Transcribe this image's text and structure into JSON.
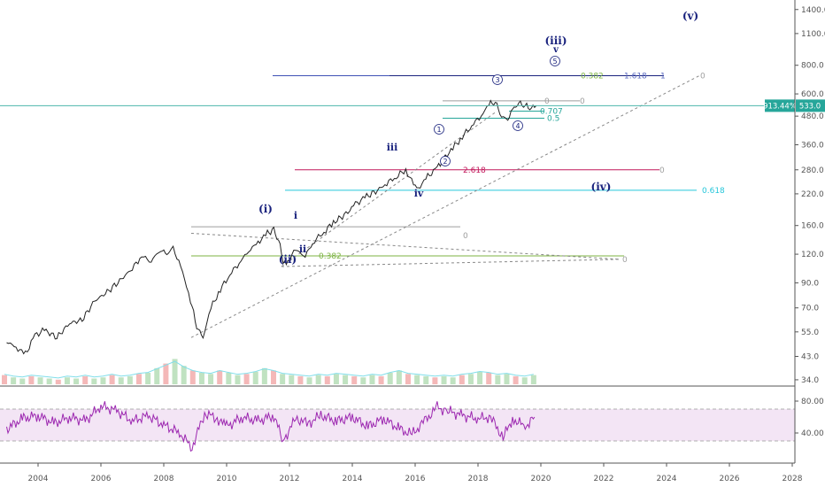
{
  "chart_data": [
    {
      "type": "line",
      "title": "",
      "y_scale": "log",
      "ylim": [
        30,
        1500
      ],
      "xlim": [
        2003.0,
        2027.6
      ],
      "y_ticks": [
        "1400.0",
        "1100.0",
        "800.0",
        "600.0",
        "480.0",
        "360.0",
        "280.0",
        "220.0",
        "160.0",
        "120.0",
        "90.0",
        "70.0",
        "55.0",
        "43.0",
        "34.0"
      ],
      "y_tick_values": [
        1400,
        1100,
        800,
        600,
        480,
        360,
        280,
        220,
        160,
        120,
        90,
        70,
        55,
        43,
        34
      ],
      "x_ticks": [
        "2004",
        "2006",
        "2008",
        "2010",
        "2012",
        "2014",
        "2016",
        "2018",
        "2020",
        "2022",
        "2024",
        "2026",
        "2028"
      ],
      "x_tick_values": [
        2004,
        2006,
        2008,
        2010,
        2012,
        2014,
        2016,
        2018,
        2020,
        2022,
        2024,
        2026,
        2028
      ],
      "series": [
        {
          "color": "#222222",
          "x": [
            2003.0,
            2003.3,
            2003.6,
            2003.9,
            2004.2,
            2004.6,
            2005.0,
            2005.4,
            2005.8,
            2006.2,
            2006.6,
            2007.0,
            2007.3,
            2007.6,
            2007.9,
            2008.1,
            2008.3,
            2008.6,
            2008.85,
            2009.05,
            2009.25,
            2009.5,
            2009.8,
            2010.1,
            2010.4,
            2010.7,
            2011.0,
            2011.3,
            2011.5,
            2011.7,
            2011.8,
            2011.95,
            2012.2,
            2012.5,
            2012.8,
            2013.1,
            2013.4,
            2013.8,
            2014.1,
            2014.4,
            2014.8,
            2015.1,
            2015.4,
            2015.7,
            2015.95,
            2016.1,
            2016.4,
            2016.7,
            2016.9,
            2017.2,
            2017.5,
            2017.8,
            2018.1,
            2018.35,
            2018.55,
            2018.75,
            2018.95,
            2019.1,
            2019.3,
            2019.5,
            2019.7,
            2019.85
          ],
          "values": [
            50,
            47,
            44,
            53,
            56,
            52,
            60,
            62,
            75,
            82,
            92,
            104,
            118,
            112,
            126,
            120,
            128,
            100,
            76,
            58,
            52,
            70,
            84,
            98,
            110,
            124,
            135,
            148,
            153,
            132,
            108,
            112,
            125,
            118,
            138,
            150,
            165,
            180,
            198,
            212,
            228,
            245,
            262,
            280,
            240,
            232,
            262,
            285,
            312,
            348,
            390,
            438,
            482,
            540,
            555,
            478,
            465,
            512,
            548,
            533,
            520,
            533
          ]
        }
      ],
      "last_value_labels": [
        "913.44%",
        "533.0"
      ],
      "elliott_labels": [
        "(i)",
        "(ii)",
        "(iii)",
        "(iv)",
        "(v)",
        "i",
        "ii",
        "iii",
        "iv",
        "v"
      ],
      "circled_labels": [
        "1",
        "2",
        "3",
        "4",
        "5"
      ],
      "fib_labels": [
        {
          "text": "0.382",
          "color": "#7cb342"
        },
        {
          "text": "1.618",
          "color": "#5c6bc0"
        },
        {
          "text": "1",
          "color": "#5c6bc0"
        },
        {
          "text": "0",
          "color": "#9e9e9e"
        },
        {
          "text": "0.707",
          "color": "#26a69a"
        },
        {
          "text": "0.5",
          "color": "#26a69a"
        },
        {
          "text": "2.618",
          "color": "#c2185b"
        },
        {
          "text": "0.618",
          "color": "#26c6da"
        },
        {
          "text": "0",
          "color": "#9e9e9e"
        },
        {
          "text": "0.382",
          "color": "#7cb342"
        }
      ]
    },
    {
      "type": "line",
      "title": "",
      "ylim": [
        0,
        100
      ],
      "y_ticks": [
        "80.00",
        "40.00"
      ],
      "y_tick_values": [
        80,
        40
      ],
      "band": [
        30,
        70
      ],
      "series": [
        {
          "color": "#9c27b0",
          "x": [
            2003.0,
            2003.5,
            2004.0,
            2004.5,
            2005.0,
            2005.5,
            2006.0,
            2006.5,
            2007.0,
            2007.5,
            2008.0,
            2008.5,
            2008.9,
            2009.3,
            2009.7,
            2010.0,
            2010.5,
            2011.0,
            2011.5,
            2011.8,
            2012.2,
            2012.6,
            2013.0,
            2013.5,
            2014.0,
            2014.5,
            2015.0,
            2015.5,
            2015.9,
            2016.3,
            2016.7,
            2017.0,
            2017.5,
            2018.0,
            2018.4,
            2018.8,
            2019.1,
            2019.5,
            2019.8
          ],
          "values": [
            45,
            58,
            62,
            52,
            60,
            55,
            74,
            68,
            55,
            62,
            50,
            40,
            22,
            65,
            58,
            48,
            60,
            55,
            62,
            30,
            58,
            52,
            62,
            55,
            60,
            48,
            58,
            45,
            38,
            55,
            72,
            68,
            62,
            58,
            60,
            34,
            58,
            48,
            60
          ]
        }
      ]
    }
  ],
  "volume": {
    "values": [
      8,
      6,
      5,
      7,
      6,
      5,
      4,
      6,
      5,
      7,
      5,
      6,
      8,
      6,
      7,
      9,
      10,
      14,
      18,
      22,
      16,
      12,
      10,
      9,
      12,
      10,
      8,
      9,
      11,
      14,
      12,
      9,
      8,
      7,
      6,
      8,
      7,
      9,
      8,
      7,
      6,
      8,
      7,
      10,
      12,
      9,
      8,
      7,
      6,
      7,
      6,
      8,
      9,
      11,
      10,
      8,
      9,
      7,
      6,
      8
    ],
    "up_color": "#a5d6a7",
    "down_color": "#ef9a9a"
  }
}
